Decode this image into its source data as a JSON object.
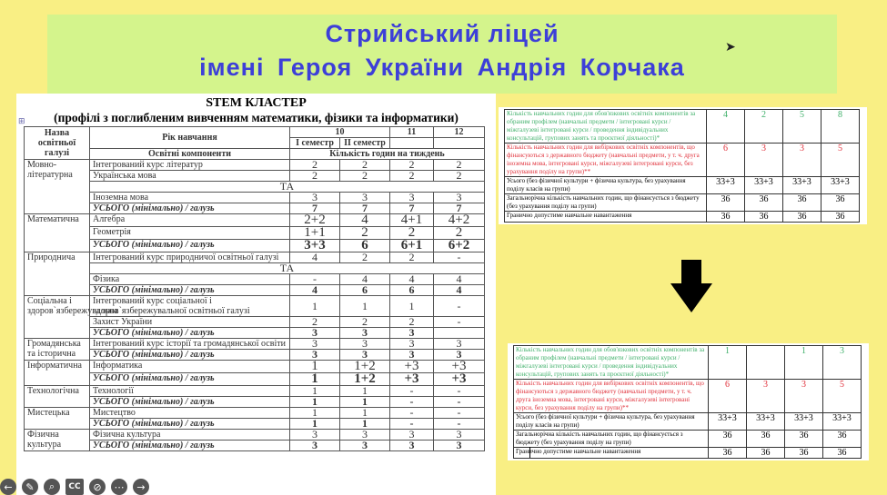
{
  "banner": {
    "line1": "Стрийський ліцей",
    "line2": "імені  Героя  України Андрія Корчака"
  },
  "doc": {
    "title": "STEM КЛАСТЕР",
    "subtitle": "(профілі з поглибленим вивченням математики, фізики та інформатики)",
    "header": {
      "area": "Назва освітньої галузі",
      "year": "Рік навчання",
      "components": "Освітні компоненти",
      "hours": "Кількість годин на тиждень",
      "g10": "10",
      "g11": "11",
      "g12": "12",
      "sem1": "І семестр",
      "sem2": "ІІ семестр"
    },
    "groups": [
      {
        "name": "Мовно-літературна",
        "rows": [
          {
            "subject": "Інтегрований курс літератур",
            "values": [
              "2",
              "2",
              "2",
              "2"
            ]
          },
          {
            "subject": "Українська мова",
            "values": [
              "2",
              "2",
              "2",
              "2"
            ]
          },
          {
            "ta": "ТА"
          },
          {
            "subject": "Іноземна мова",
            "values": [
              "3",
              "3",
              "3",
              "3"
            ]
          },
          {
            "subject": "УСЬОГО (мінімально) / галузь",
            "values": [
              "7",
              "7",
              "7",
              "7"
            ],
            "total": true
          }
        ]
      },
      {
        "name": "Математична",
        "rows": [
          {
            "subject": "Алгебра",
            "values": [
              "2+2",
              "4",
              "4+1",
              "4+2"
            ],
            "big": true
          },
          {
            "subject": "Геометрія",
            "values": [
              "1+1",
              "2",
              "2",
              "2"
            ],
            "big": true
          },
          {
            "subject": "УСЬОГО (мінімально) / галузь",
            "values": [
              "3+3",
              "6",
              "6+1",
              "6+2"
            ],
            "total": true,
            "big": true
          }
        ]
      },
      {
        "name": "Природнича",
        "rows": [
          {
            "subject": "Інтегрований курс природничої освітньої галузі",
            "values": [
              "4",
              "2",
              "2",
              "-"
            ]
          },
          {
            "ta": "ТА"
          },
          {
            "subject": "Фізика",
            "values": [
              "-",
              "4",
              "4",
              "4"
            ]
          },
          {
            "subject": "УСЬОГО (мінімально) / галузь",
            "values": [
              "4",
              "6",
              "6",
              "4"
            ],
            "total": true
          }
        ]
      },
      {
        "name": "Соціальна і здоров`язбережувальна",
        "rows": [
          {
            "subject": "Інтегрований курс соціальної і здоров`язбережувальної освітньої галузі",
            "values": [
              "1",
              "1",
              "1",
              "-"
            ]
          },
          {
            "subject": "Захист України",
            "values": [
              "2",
              "2",
              "2",
              "-"
            ]
          },
          {
            "subject": "УСЬОГО (мінімально) / галузь",
            "values": [
              "3",
              "3",
              "3",
              ""
            ],
            "total": true
          }
        ]
      },
      {
        "name": "Громадянська та історична",
        "rows": [
          {
            "subject": "Інтегрований курс історії та громадянської освіти",
            "values": [
              "3",
              "3",
              "3",
              "3"
            ]
          },
          {
            "subject": "УСЬОГО (мінімально) / галузь",
            "values": [
              "3",
              "3",
              "3",
              "3"
            ],
            "total": true
          }
        ]
      },
      {
        "name": "Інформатична",
        "rows": [
          {
            "subject": "Інформатика",
            "values": [
              "1",
              "1+2",
              "+3",
              "+3"
            ],
            "big": true
          },
          {
            "subject": "УСЬОГО (мінімально) / галузь",
            "values": [
              "1",
              "1+2",
              "+3",
              "+3"
            ],
            "total": true,
            "big": true
          }
        ]
      },
      {
        "name": "Технологічна",
        "rows": [
          {
            "subject": "Технології",
            "values": [
              "1",
              "1",
              "-",
              "-"
            ]
          },
          {
            "subject": "УСЬОГО (мінімально) / галузь",
            "values": [
              "1",
              "1",
              "-",
              "-"
            ],
            "total": true
          }
        ]
      },
      {
        "name": "Мистецька",
        "rows": [
          {
            "subject": "Мистецтво",
            "values": [
              "1",
              "1",
              "-",
              "-"
            ]
          },
          {
            "subject": "УСЬОГО (мінімально) / галузь",
            "values": [
              "1",
              "1",
              "-",
              "-"
            ],
            "total": true
          }
        ]
      },
      {
        "name": "Фізична культура",
        "rows": [
          {
            "subject": "Фізична культура",
            "values": [
              "3",
              "3",
              "3",
              "3"
            ]
          },
          {
            "subject": "УСЬОГО (мінімально) / галузь",
            "values": [
              "3",
              "3",
              "3",
              "3"
            ],
            "total": true
          }
        ]
      }
    ]
  },
  "before": {
    "rows": [
      {
        "label": "Кількість навчальних годин для обов'язкових освітніх компонентів за обраним профілем (навчальні предмети / інтегровані курси / міжгалузеві інтегровані курси / проведення індивідуальних консультацій, групових занять та проєктної діяльності)*",
        "values": [
          "4",
          "2",
          "5",
          "8"
        ],
        "color": "green"
      },
      {
        "label": "Кількість навчальних годин для вибіркових освітніх компонентів, що фінансуються з державного бюджету (навчальні предмети, у т. ч. друга іноземна мова, інтегровані курси, міжгалузеві інтегровані курси, без урахування поділу на групи)**",
        "values": [
          "6",
          "3",
          "3",
          "5"
        ],
        "color": "red"
      },
      {
        "label": "Усього (без фізичної культури + фізична культура, без урахування поділу класів на групи)",
        "values": [
          "33+3",
          "33+3",
          "33+3",
          "33+3"
        ],
        "color": "black"
      },
      {
        "label": "Загальнорічна кількість навчальних годин, що фінансується з бюджету (без урахування поділу на групи)",
        "values": [
          "36",
          "36",
          "36",
          "36"
        ],
        "color": "black"
      },
      {
        "label": "Гранично допустиме навчальне навантаження",
        "values": [
          "36",
          "36",
          "36",
          "36"
        ],
        "color": "black"
      }
    ]
  },
  "after": {
    "rows": [
      {
        "label": "Кількість навчальних годин для обов'язкових освітніх компонентів за обраним профілем (навчальні предмети / інтегровані курси / міжгалузеві інтегровані курси / проведення індивідуальних консультацій, групових занять та проєктної діяльності)*",
        "values": [
          "1",
          "",
          "1",
          "3"
        ],
        "color": "green"
      },
      {
        "label": "Кількість навчальних годин для вибіркових освітніх компонентів, що фінансуються з державного бюджету (навчальні предмети, у т. ч. друга іноземна мова, інтегровані курси, міжгалузеві інтегровані курси, без урахування поділу на групи)**",
        "values": [
          "6",
          "3",
          "3",
          "5"
        ],
        "color": "red"
      },
      {
        "label": "Усього (без фізичної культури + фізична культура, без урахування поділу класів на групи)",
        "values": [
          "33+3",
          "33+3",
          "33+3",
          "33+3"
        ],
        "color": "black"
      },
      {
        "label": "Загальнорічна кількість навчальних годин, що фінансується з бюджету (без урахування поділу на групи)",
        "values": [
          "36",
          "36",
          "36",
          "36"
        ],
        "color": "black"
      },
      {
        "label": "Гранично допустиме навчальне навантаження",
        "values": [
          "36",
          "36",
          "36",
          "36"
        ],
        "color": "black"
      }
    ]
  },
  "toolbar": {
    "icons": [
      "back-icon",
      "pen-icon",
      "zoom-icon",
      "captions-icon",
      "pointer-off-icon",
      "more-icon",
      "next-icon"
    ],
    "cc": "CC"
  },
  "colors": {
    "title": "#3d3fd8",
    "banner": "#d4f48c",
    "background": "#f9ef84",
    "increment": "#3aa04a"
  }
}
